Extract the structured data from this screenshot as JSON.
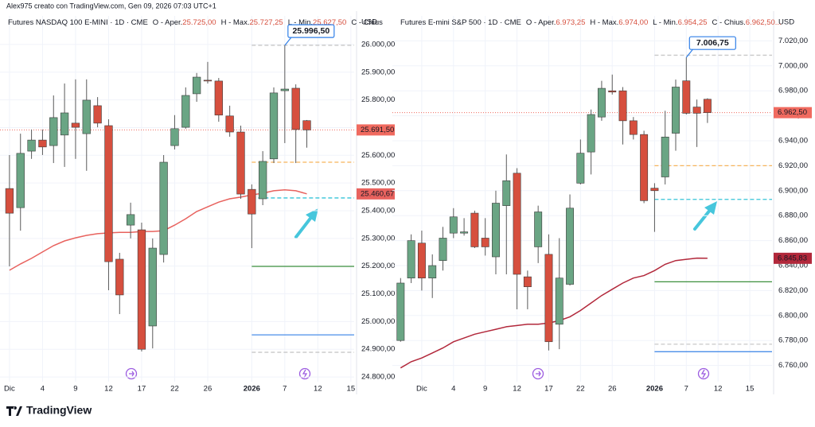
{
  "credit": "Alex975 creato con TradingView.com, Gen 09, 2026 07:03 UTC+1",
  "brand": "TradingView",
  "chart_data": [
    {
      "type": "candlestick",
      "currency": "USD",
      "title": "Futures NASDAQ 100 E-MINI · 1D · CME",
      "ohlc_header": [
        {
          "label": "O - Aper.",
          "value": "25.725,00"
        },
        {
          "label": "H - Max.",
          "value": "25.727,25"
        },
        {
          "label": "L - Min.",
          "value": "25.627,50"
        },
        {
          "label": "C - Chius"
        }
      ],
      "up_color": "#6aa584",
      "down_color": "#d64f3e",
      "grid": true,
      "x": [
        0,
        1,
        2,
        3,
        4,
        5,
        6,
        7,
        8,
        9,
        10,
        11,
        12,
        13,
        14,
        15,
        16,
        17,
        18,
        19,
        20,
        21,
        22,
        23,
        24,
        25,
        26,
        27
      ],
      "open": [
        25480,
        25411,
        25615,
        25655,
        25635,
        25673,
        25716,
        25678,
        25779,
        25707,
        25225,
        25348,
        25331,
        24984,
        25242,
        25635,
        25701,
        25822,
        25871,
        25868,
        25742,
        25684,
        25477,
        25443,
        25587,
        25833,
        25842,
        25725
      ],
      "high": [
        25601,
        25678,
        25693,
        25693,
        25816,
        25859,
        25874,
        25874,
        25810,
        25730,
        25248,
        25429,
        25357,
        25300,
        25601,
        25745,
        25845,
        25897,
        25937,
        25879,
        25779,
        25707,
        25495,
        25615,
        25845,
        25996.5,
        25856,
        25727.25
      ],
      "low": [
        25199,
        25328,
        25587,
        25601,
        25572,
        25558,
        25587,
        25544,
        25701,
        25113,
        25027,
        25300,
        24892,
        24903,
        25213,
        25621,
        25696,
        25793,
        25859,
        25721,
        25667,
        25443,
        25265,
        25420,
        25572,
        25644,
        25572,
        25627.5
      ],
      "close": [
        25391,
        25607,
        25655,
        25630,
        25736,
        25753,
        25701,
        25799,
        25716,
        25216,
        25096,
        25386,
        24900,
        25265,
        25575,
        25696,
        25816,
        25882,
        25868,
        25745,
        25684,
        25460,
        25388,
        25578,
        25825,
        25839,
        25693,
        25691.5
      ],
      "ma": {
        "color": "#e8625e",
        "values": [
          25185,
          25208,
          25228,
          25251,
          25274,
          25291,
          25302,
          25311,
          25317,
          25320,
          25322,
          25322,
          25325,
          25325,
          25328,
          25348,
          25371,
          25397,
          25414,
          25431,
          25443,
          25449,
          25457,
          25463,
          25472,
          25475,
          25472,
          25460.67
        ]
      },
      "levels": [
        {
          "value": 25997,
          "x": 22,
          "color": "#c8c8c8",
          "style": "dashed"
        },
        {
          "value": 25575,
          "x": 22,
          "color": "#f6b35a",
          "style": "dashed"
        },
        {
          "value": 25446,
          "x": 22,
          "color": "#35c4d8",
          "style": "dashed"
        },
        {
          "value": 25199,
          "x": 22,
          "color": "#3c8f3c",
          "style": "solid"
        },
        {
          "value": 24952,
          "x": 22,
          "color": "#4a8ee8",
          "style": "solid"
        },
        {
          "value": 24889,
          "x": 22,
          "color": "#c8c8c8",
          "style": "dashed"
        }
      ],
      "price_line": {
        "value": 25691.5,
        "label": "25.691,50",
        "color": "#f06a5f"
      },
      "ma_label": {
        "value": 25460.67,
        "label": "25.460,67"
      },
      "high_callout": {
        "value": 25996.5,
        "label": "25.996,50",
        "x": 25
      },
      "xlim": [
        -0.5,
        31.3
      ],
      "xticks": [
        {
          "value": 0,
          "label": "Dic"
        },
        {
          "value": 3,
          "label": "4"
        },
        {
          "value": 6,
          "label": "9"
        },
        {
          "value": 9,
          "label": "12"
        },
        {
          "value": 12,
          "label": "17"
        },
        {
          "value": 15,
          "label": "22"
        },
        {
          "value": 18,
          "label": "26"
        },
        {
          "value": 22,
          "label": "2026"
        },
        {
          "value": 25,
          "label": "7"
        },
        {
          "value": 28,
          "label": "12"
        },
        {
          "value": 31,
          "label": "15"
        }
      ],
      "ylim": [
        24783,
        26103
      ],
      "yticks": [
        {
          "value": 24800,
          "label": "24.800,00"
        },
        {
          "value": 24900,
          "label": "24.900,00"
        },
        {
          "value": 25000,
          "label": "25.000,00"
        },
        {
          "value": 25100,
          "label": "25.100,00"
        },
        {
          "value": 25200,
          "label": "25.200,00"
        },
        {
          "value": 25300,
          "label": "25.300,00"
        },
        {
          "value": 25400,
          "label": "25.400,00"
        },
        {
          "value": 25500,
          "label": "25.500,00"
        },
        {
          "value": 25600,
          "label": "25.600,00"
        },
        {
          "value": 25700,
          "label": "25.700,00"
        },
        {
          "value": 25800,
          "label": "25.800,00"
        },
        {
          "value": 25900,
          "label": "25.900,00"
        },
        {
          "value": 26000,
          "label": "26.000,00"
        }
      ]
    },
    {
      "type": "candlestick",
      "currency": "USD",
      "title": "Futures E-mini S&P 500 · 1D · CME",
      "ohlc_header": [
        {
          "label": "O - Aper.",
          "value": "6.973,25"
        },
        {
          "label": "H - Max.",
          "value": "6.974,00"
        },
        {
          "label": "L - Min.",
          "value": "6.954,25"
        },
        {
          "label": "C - Chius.",
          "value": "6.962,50..."
        }
      ],
      "up_color": "#6aa584",
      "down_color": "#d64f3e",
      "grid": true,
      "x": [
        -2,
        -1,
        0,
        1,
        2,
        3,
        4,
        5,
        6,
        7,
        8,
        9,
        10,
        11,
        12,
        13,
        14,
        15,
        16,
        17,
        18,
        19,
        20,
        21,
        22,
        23,
        24,
        25,
        26,
        27
      ],
      "open": [
        6780,
        6830,
        6858,
        6830,
        6844,
        6866,
        6866,
        6882,
        6862,
        6847,
        6888,
        6914,
        6831,
        6855,
        6849,
        6793,
        6825,
        6906,
        6931,
        6959,
        6980,
        6980,
        6956,
        6945,
        6902,
        6911,
        6946,
        6988,
        6967,
        6973.25
      ],
      "high": [
        6830,
        6865,
        6868,
        6849,
        6871,
        6886,
        6878,
        6884,
        6878,
        6900,
        6929,
        6918,
        6836,
        6888,
        6865,
        6862,
        6897,
        6941,
        6965,
        6988,
        6993,
        6983,
        6959,
        6948,
        6906,
        6964,
        6989,
        7006.75,
        6973,
        6974
      ],
      "low": [
        6779,
        6826,
        6820,
        6814,
        6836,
        6862,
        6864,
        6854,
        6848,
        6833,
        6833,
        6805,
        6805,
        6842,
        6772,
        6773,
        6824,
        6905,
        6913,
        6956,
        6977,
        6937,
        6941,
        6890,
        6867,
        6905,
        6932,
        6961,
        6935,
        6954.25
      ],
      "close": [
        6826,
        6860,
        6830,
        6840,
        6862,
        6879,
        6867,
        6855,
        6855,
        6890,
        6908,
        6833,
        6823,
        6883,
        6779,
        6830,
        6886,
        6930,
        6961,
        6982,
        6979,
        6956,
        6945,
        6892,
        6900,
        6943,
        6983,
        6962,
        6962,
        6962.5
      ],
      "ma": {
        "color": "#b2283b",
        "values": [
          6758,
          6763,
          6766,
          6770,
          6774,
          6779,
          6782,
          6785,
          6787,
          6789,
          6791,
          6792,
          6793,
          6793,
          6794,
          6796,
          6799,
          6804,
          6810,
          6816,
          6821,
          6826,
          6830,
          6832,
          6836,
          6841,
          6844,
          6845,
          6846,
          6845.83
        ]
      },
      "levels": [
        {
          "value": 7008.5,
          "x": 22,
          "color": "#c8c8c8",
          "style": "dashed"
        },
        {
          "value": 6920,
          "x": 22,
          "color": "#f6b35a",
          "style": "dashed"
        },
        {
          "value": 6893,
          "x": 22,
          "color": "#35c4d8",
          "style": "dashed"
        },
        {
          "value": 6827,
          "x": 22,
          "color": "#3c8f3c",
          "style": "solid"
        },
        {
          "value": 6777,
          "x": 22,
          "color": "#c8c8c8",
          "style": "dashed"
        },
        {
          "value": 6771,
          "x": 22,
          "color": "#4a8ee8",
          "style": "solid"
        }
      ],
      "price_line": {
        "value": 6962.5,
        "label": "6.962,50",
        "color": "#f06a5f"
      },
      "ma_label": {
        "value": 6845.83,
        "label": "6.845,83"
      },
      "high_callout": {
        "value": 7006.75,
        "label": "7.006,75",
        "x": 25
      },
      "xlim": [
        -2.4,
        33.1
      ],
      "xticks": [
        {
          "value": 0,
          "label": "Dic"
        },
        {
          "value": 3,
          "label": "4"
        },
        {
          "value": 6,
          "label": "9"
        },
        {
          "value": 9,
          "label": "12"
        },
        {
          "value": 12,
          "label": "17"
        },
        {
          "value": 15,
          "label": "22"
        },
        {
          "value": 18,
          "label": "26"
        },
        {
          "value": 22,
          "label": "2026"
        },
        {
          "value": 25,
          "label": "7"
        },
        {
          "value": 28,
          "label": "12"
        },
        {
          "value": 31,
          "label": "15"
        }
      ],
      "ylim": [
        6747,
        7040
      ],
      "yticks": [
        {
          "value": 6760,
          "label": "6.760,00"
        },
        {
          "value": 6780,
          "label": "6.780,00"
        },
        {
          "value": 6800,
          "label": "6.800,00"
        },
        {
          "value": 6820,
          "label": "6.820,00"
        },
        {
          "value": 6840,
          "label": "6.840,00"
        },
        {
          "value": 6860,
          "label": "6.860,00"
        },
        {
          "value": 6880,
          "label": "6.880,00"
        },
        {
          "value": 6900,
          "label": "6.900,00"
        },
        {
          "value": 6920,
          "label": "6.920,00"
        },
        {
          "value": 6940,
          "label": "6.940,00"
        },
        {
          "value": 6960,
          "label": "6.960,00"
        },
        {
          "value": 6980,
          "label": "6.980,00"
        },
        {
          "value": 7000,
          "label": "7.000,00"
        },
        {
          "value": 7020,
          "label": "7.020,00"
        }
      ]
    }
  ]
}
